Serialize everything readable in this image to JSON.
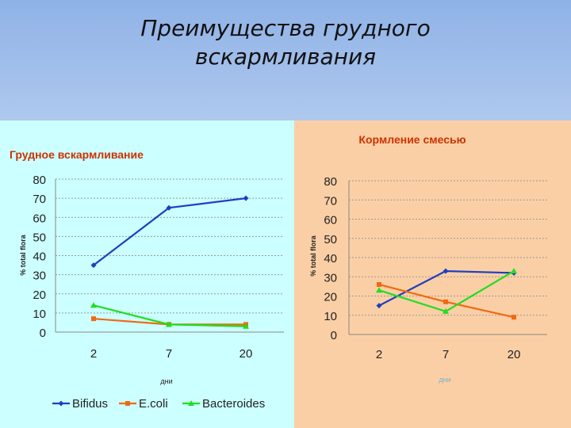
{
  "slide": {
    "title_line1": "Преимущества грудного",
    "title_line2": "вскармливания"
  },
  "colors": {
    "bifidus": "#1f3fbf",
    "ecoli": "#f06a12",
    "bacteroides": "#22dd22"
  },
  "chart_data": [
    {
      "type": "line",
      "title": "Грудное вскармливание",
      "xlabel": "дни",
      "ylabel": "% total flora",
      "categories": [
        "2",
        "7",
        "20"
      ],
      "ylim": [
        0,
        80
      ],
      "yticks": [
        "0",
        "10",
        "20",
        "30",
        "40",
        "50",
        "60",
        "70",
        "80"
      ],
      "grid": true,
      "legend": "bottom",
      "series": [
        {
          "name": "Bifidus",
          "values": [
            35,
            65,
            70
          ]
        },
        {
          "name": "E.coli",
          "values": [
            7,
            4,
            4
          ]
        },
        {
          "name": "Bacteroides",
          "values": [
            14,
            4,
            3
          ]
        }
      ]
    },
    {
      "type": "line",
      "title": "Кормление смесью",
      "xlabel": "дни",
      "ylabel": "% total flora",
      "categories": [
        "2",
        "7",
        "20"
      ],
      "ylim": [
        0,
        80
      ],
      "yticks": [
        "0",
        "10",
        "20",
        "30",
        "40",
        "50",
        "60",
        "70",
        "80"
      ],
      "grid": true,
      "series": [
        {
          "values": [
            15,
            33,
            32
          ]
        },
        {
          "values": [
            26,
            17,
            9
          ]
        },
        {
          "values": [
            23,
            12,
            33
          ]
        }
      ]
    }
  ]
}
